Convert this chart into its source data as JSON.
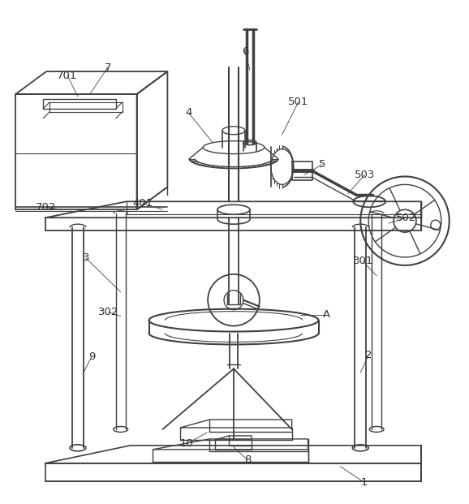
{
  "background_color": "#ffffff",
  "line_color": "#404040",
  "label_color": "#303030",
  "figure_width": 5.78,
  "figure_height": 6.21,
  "dpi": 100
}
